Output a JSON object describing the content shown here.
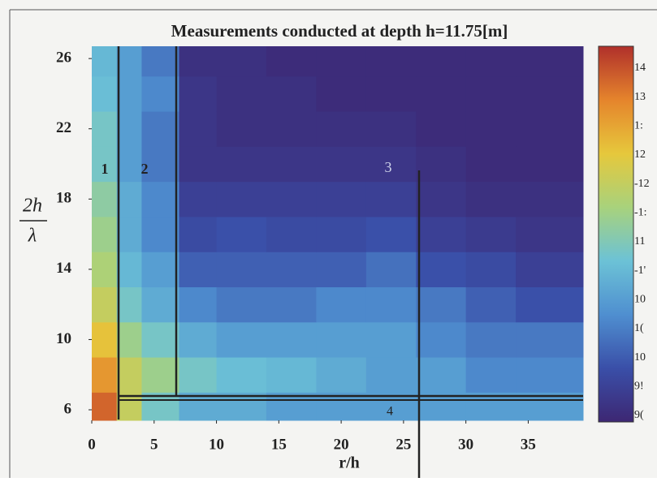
{
  "chart_data": {
    "type": "heatmap",
    "title": "Measurements conducted at depth h=11.75[m]",
    "xlabel": "r/h",
    "ylabel_top": "2h",
    "ylabel_bottom": "λ",
    "xbins": [
      0,
      2,
      4,
      7,
      10,
      14,
      18,
      22,
      26,
      30,
      34,
      39.4
    ],
    "ybins": [
      5.4,
      7,
      9,
      11,
      13,
      15,
      17,
      19,
      21,
      23,
      25,
      26.7
    ],
    "xlim": [
      0,
      39.4
    ],
    "ylim": [
      5.4,
      26.7
    ],
    "xticks": [
      0,
      5,
      10,
      15,
      20,
      25,
      30,
      35
    ],
    "yticks": [
      6,
      10,
      14,
      18,
      22,
      26
    ],
    "z": [
      [
        14,
        12.5,
        11.5,
        11,
        11,
        10.8,
        10.8,
        10.8,
        10.8,
        10.8,
        10.8
      ],
      [
        13.5,
        12.5,
        12,
        11.5,
        11.3,
        11.2,
        11,
        10.8,
        10.8,
        10.5,
        10.5
      ],
      [
        13,
        12,
        11.5,
        11,
        10.8,
        10.8,
        10.8,
        10.8,
        10.5,
        10.3,
        10.3
      ],
      [
        12.5,
        11.5,
        11,
        10.5,
        10.3,
        10.3,
        10.5,
        10.5,
        10.3,
        10,
        9.8
      ],
      [
        12.2,
        11.2,
        10.8,
        10,
        10,
        10,
        10,
        10.2,
        9.8,
        9.7,
        9.5
      ],
      [
        12,
        11,
        10.5,
        9.7,
        9.8,
        9.7,
        9.7,
        9.8,
        9.5,
        9.4,
        9.3
      ],
      [
        11.8,
        11,
        10.5,
        9.5,
        9.5,
        9.5,
        9.5,
        9.5,
        9.3,
        9.2,
        9.2
      ],
      [
        11.5,
        10.8,
        10.3,
        9.3,
        9.3,
        9.3,
        9.3,
        9.3,
        9.2,
        9.1,
        9.1
      ],
      [
        11.5,
        10.8,
        10.3,
        9.3,
        9.2,
        9.2,
        9.2,
        9.2,
        9.1,
        9.1,
        9.1
      ],
      [
        11.3,
        10.8,
        10.5,
        9.3,
        9.2,
        9.2,
        9.1,
        9.1,
        9.1,
        9.1,
        9.1
      ],
      [
        11.2,
        10.8,
        10.3,
        9.2,
        9.2,
        9.1,
        9.1,
        9.1,
        9.1,
        9.1,
        9.1
      ]
    ],
    "clim": [
      9,
      14.5
    ],
    "colors": [
      "#3d2773",
      "#3a4fa8",
      "#4f8fd0",
      "#6cc2d6",
      "#a8d27c",
      "#e6c83c",
      "#e5842c",
      "#b0302b"
    ],
    "colorbar_labels": [
      "14",
      "13",
      "1:",
      "12",
      "-12",
      "-1:",
      "11",
      "-1'",
      "10",
      "1(",
      "10",
      "9!",
      "9("
    ],
    "annotations": [
      "1",
      "2",
      "3",
      "4"
    ]
  }
}
